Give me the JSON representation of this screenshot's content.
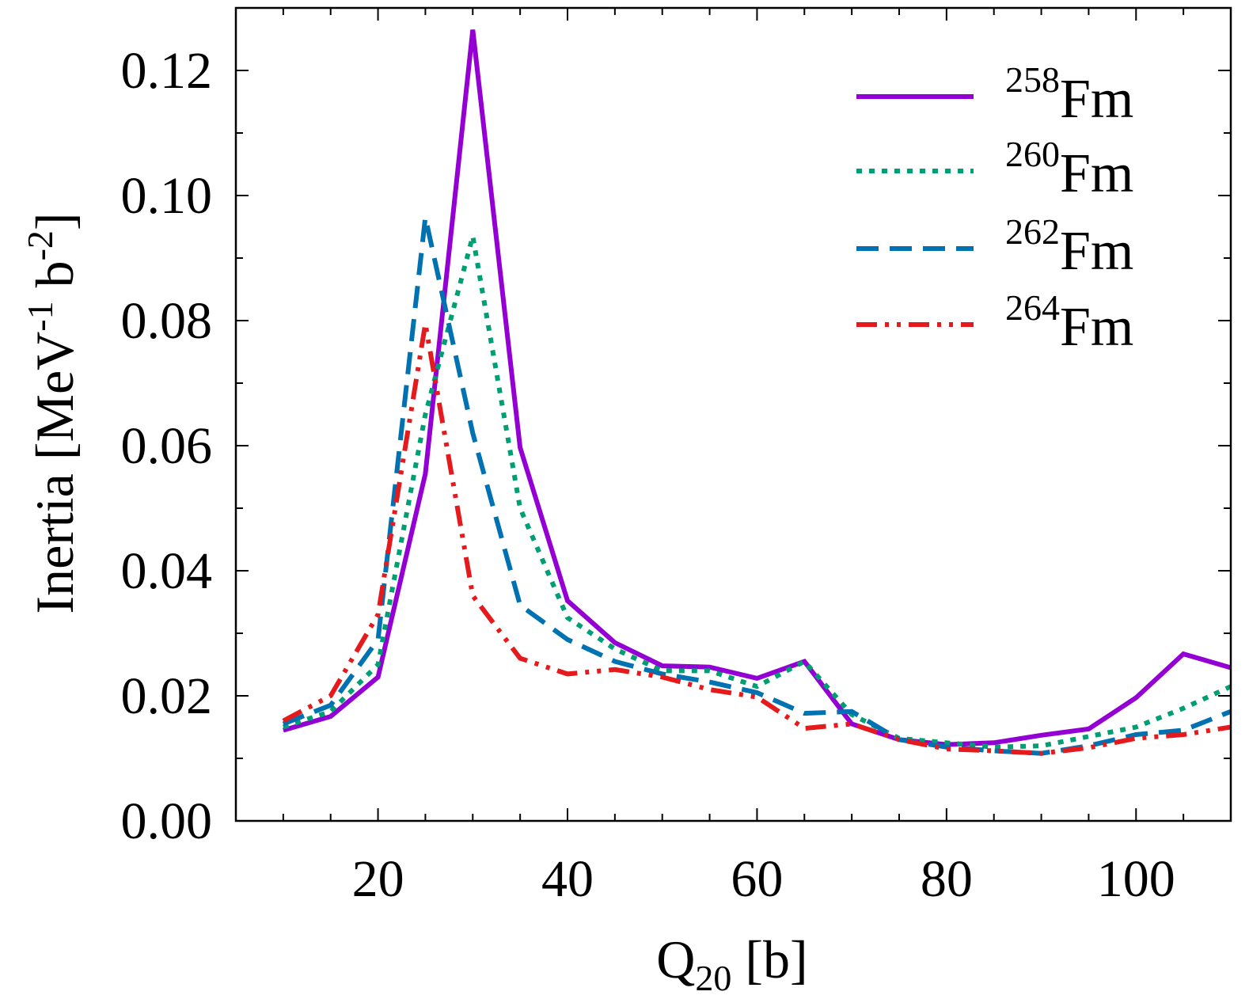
{
  "chart_data": {
    "type": "line",
    "title": "",
    "xlabel": {
      "main": "Q",
      "sub": "20",
      "rest": " [b]"
    },
    "ylabel": {
      "part1": "Inertia [MeV",
      "sup1": "-1",
      "part2": " b",
      "sup2": "-2",
      "part3": "]"
    },
    "xlim": [
      5,
      110
    ],
    "ylim": [
      0,
      0.13
    ],
    "xticks": [
      20,
      40,
      60,
      80,
      100
    ],
    "yticks": [
      0.0,
      0.02,
      0.04,
      0.06,
      0.08,
      0.1,
      0.12
    ],
    "ytick_labels": [
      "0.00",
      "0.02",
      "0.04",
      "0.06",
      "0.08",
      "0.10",
      "0.12"
    ],
    "xtick_labels": [
      "20",
      "40",
      "60",
      "80",
      "100"
    ],
    "x": [
      10,
      15,
      20,
      25,
      30,
      35,
      40,
      45,
      50,
      55,
      60,
      65,
      70,
      75,
      80,
      85,
      90,
      95,
      100,
      105,
      110
    ],
    "series": [
      {
        "name": "258Fm",
        "mass": "258",
        "element": "Fm",
        "color": "#9400D3",
        "dash": "solid",
        "values": [
          0.0145,
          0.0167,
          0.023,
          0.0555,
          0.1265,
          0.0597,
          0.0352,
          0.0285,
          0.0248,
          0.0246,
          0.0228,
          0.0255,
          0.0155,
          0.013,
          0.0122,
          0.0125,
          0.0137,
          0.0147,
          0.0197,
          0.0267,
          0.0245
        ]
      },
      {
        "name": "260Fm",
        "mass": "260",
        "element": "Fm",
        "color": "#009E73",
        "dash": "dotted",
        "values": [
          0.015,
          0.0175,
          0.025,
          0.065,
          0.0935,
          0.05,
          0.0325,
          0.0275,
          0.024,
          0.024,
          0.0215,
          0.0255,
          0.017,
          0.0132,
          0.0125,
          0.0118,
          0.012,
          0.0135,
          0.015,
          0.018,
          0.0215
        ]
      },
      {
        "name": "262Fm",
        "mass": "262",
        "element": "Fm",
        "color": "#0072B2",
        "dash": "dashed",
        "values": [
          0.0155,
          0.0185,
          0.029,
          0.0965,
          0.062,
          0.0345,
          0.029,
          0.0255,
          0.0235,
          0.0222,
          0.0205,
          0.0172,
          0.0175,
          0.013,
          0.0118,
          0.0112,
          0.0108,
          0.012,
          0.0138,
          0.0145,
          0.0175
        ]
      },
      {
        "name": "264Fm",
        "mass": "264",
        "element": "Fm",
        "color": "#E41A1C",
        "dash": "dashdotdot",
        "values": [
          0.016,
          0.02,
          0.033,
          0.0795,
          0.036,
          0.026,
          0.0235,
          0.0242,
          0.023,
          0.021,
          0.0198,
          0.0148,
          0.0155,
          0.013,
          0.0115,
          0.0112,
          0.0108,
          0.0117,
          0.0132,
          0.0138,
          0.015
        ]
      }
    ],
    "legend_position": "top-right"
  }
}
